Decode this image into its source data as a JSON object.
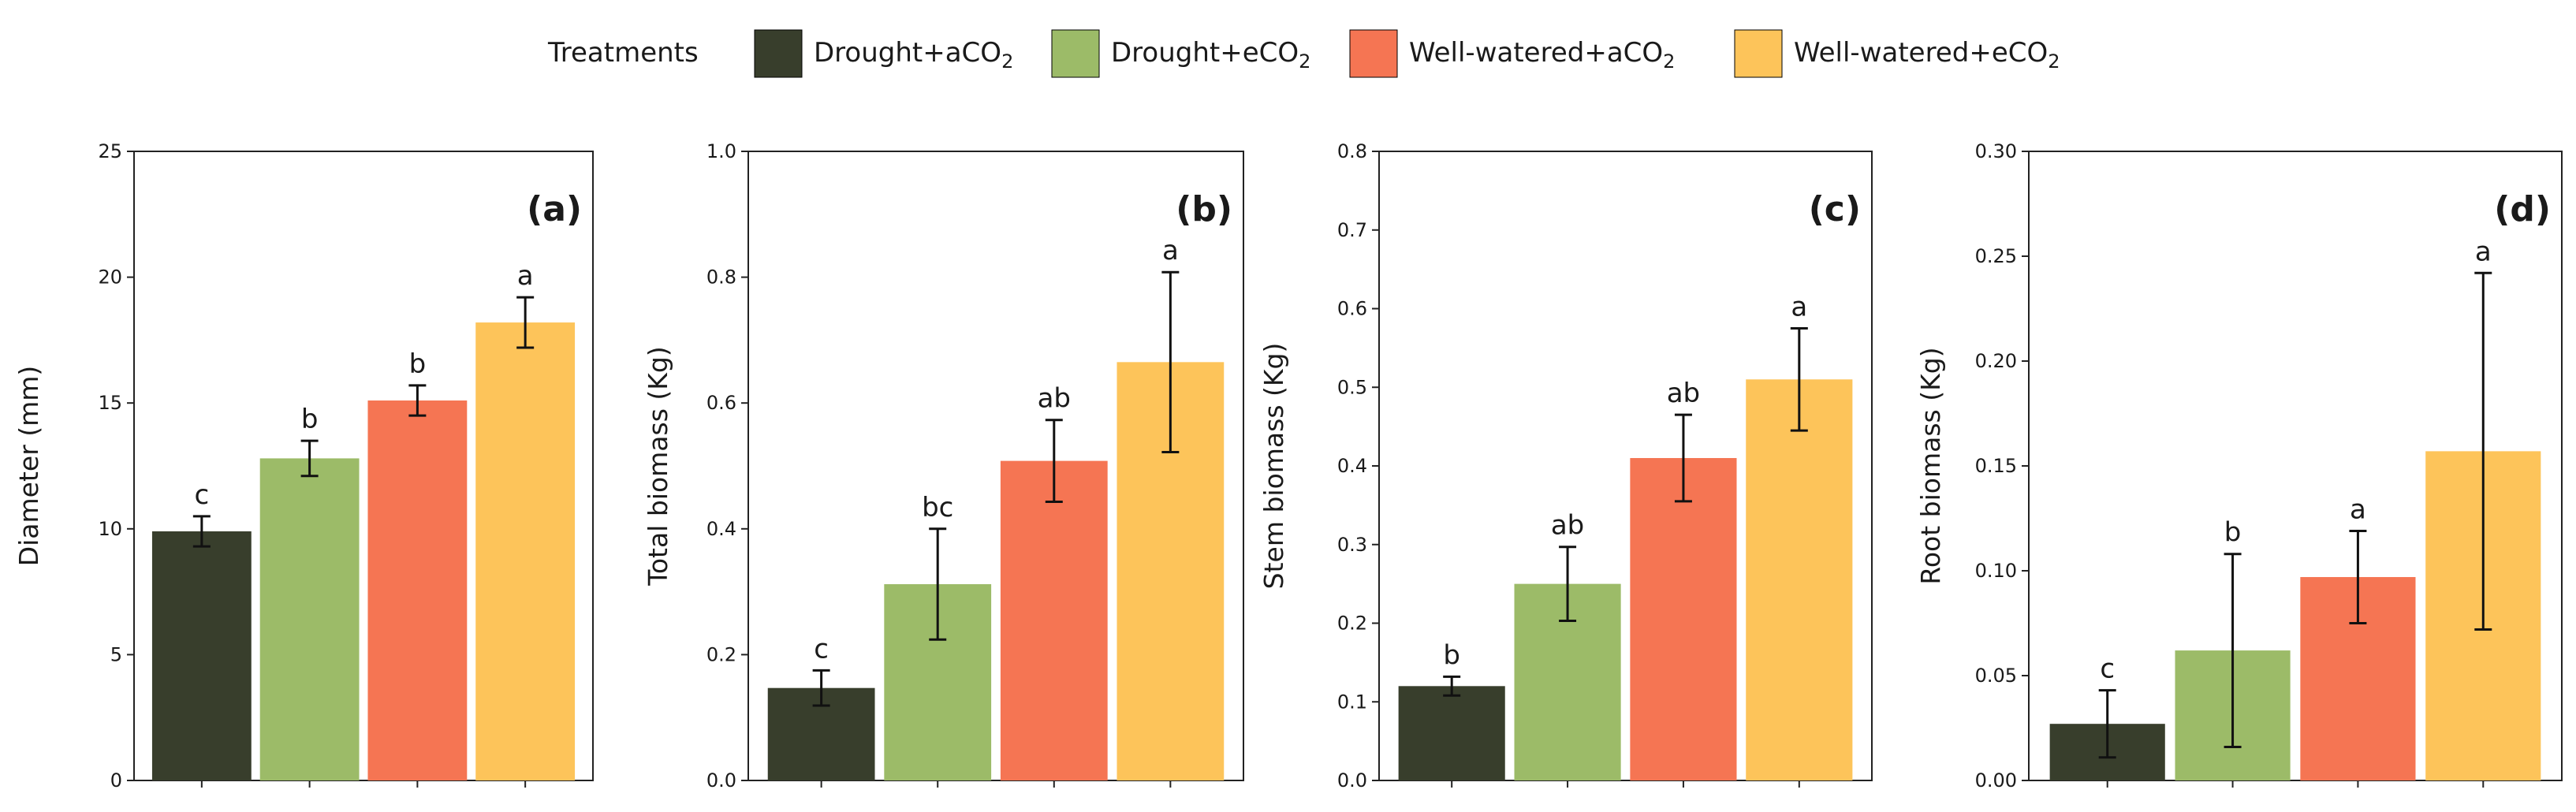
{
  "legend": {
    "title": "Treatments",
    "entries": [
      {
        "label": "Drought+aCO",
        "sub": "2",
        "color": "#383e2c"
      },
      {
        "label": "Drought+eCO",
        "sub": "2",
        "color": "#9cbb68"
      },
      {
        "label": "Well-watered+aCO",
        "sub": "2",
        "color": "#f57553"
      },
      {
        "label": "Well-watered+eCO",
        "sub": "2",
        "color": "#fdc45a"
      }
    ]
  },
  "chart_data": [
    {
      "type": "bar",
      "panel_label": "(a)",
      "title": "",
      "xlabel": "",
      "ylabel": "Diameter (mm)",
      "ylim": [
        0,
        25
      ],
      "yticks": [
        "0",
        "5",
        "10",
        "15",
        "20",
        "25"
      ],
      "categories": [
        "Drought+aCO2",
        "Drought+eCO2",
        "Well-watered+aCO2",
        "Well-watered+eCO2"
      ],
      "values": [
        9.9,
        12.8,
        15.1,
        18.2
      ],
      "errors": [
        0.6,
        0.7,
        0.6,
        1.0
      ],
      "significance": [
        "c",
        "b",
        "b",
        "a"
      ]
    },
    {
      "type": "bar",
      "panel_label": "(b)",
      "title": "",
      "xlabel": "",
      "ylabel": "Total biomass (Kg)",
      "ylim": [
        0,
        1.0
      ],
      "yticks": [
        "0.0",
        "0.2",
        "0.4",
        "0.6",
        "0.8",
        "1.0"
      ],
      "categories": [
        "Drought+aCO2",
        "Drought+eCO2",
        "Well-watered+aCO2",
        "Well-watered+eCO2"
      ],
      "values": [
        0.147,
        0.312,
        0.508,
        0.665
      ],
      "errors": [
        0.028,
        0.088,
        0.065,
        0.143
      ],
      "significance": [
        "c",
        "bc",
        "ab",
        "a"
      ]
    },
    {
      "type": "bar",
      "panel_label": "(c)",
      "title": "",
      "xlabel": "",
      "ylabel": "Stem biomass (Kg)",
      "ylim": [
        0,
        0.8
      ],
      "yticks": [
        "0.0",
        "0.1",
        "0.2",
        "0.3",
        "0.4",
        "0.5",
        "0.6",
        "0.7",
        "0.8"
      ],
      "categories": [
        "Drought+aCO2",
        "Drought+eCO2",
        "Well-watered+aCO2",
        "Well-watered+eCO2"
      ],
      "values": [
        0.12,
        0.25,
        0.41,
        0.51
      ],
      "errors": [
        0.012,
        0.047,
        0.055,
        0.065
      ],
      "significance": [
        "b",
        "ab",
        "ab",
        "a"
      ]
    },
    {
      "type": "bar",
      "panel_label": "(d)",
      "title": "",
      "xlabel": "",
      "ylabel": "Root biomass (Kg)",
      "ylim": [
        0,
        0.3
      ],
      "yticks": [
        "0.00",
        "0.05",
        "0.10",
        "0.15",
        "0.20",
        "0.25",
        "0.30"
      ],
      "categories": [
        "Drought+aCO2",
        "Drought+eCO2",
        "Well-watered+aCO2",
        "Well-watered+eCO2"
      ],
      "values": [
        0.027,
        0.062,
        0.097,
        0.157
      ],
      "errors": [
        0.016,
        0.046,
        0.022,
        0.085
      ],
      "significance": [
        "c",
        "b",
        "a",
        "a"
      ]
    }
  ]
}
